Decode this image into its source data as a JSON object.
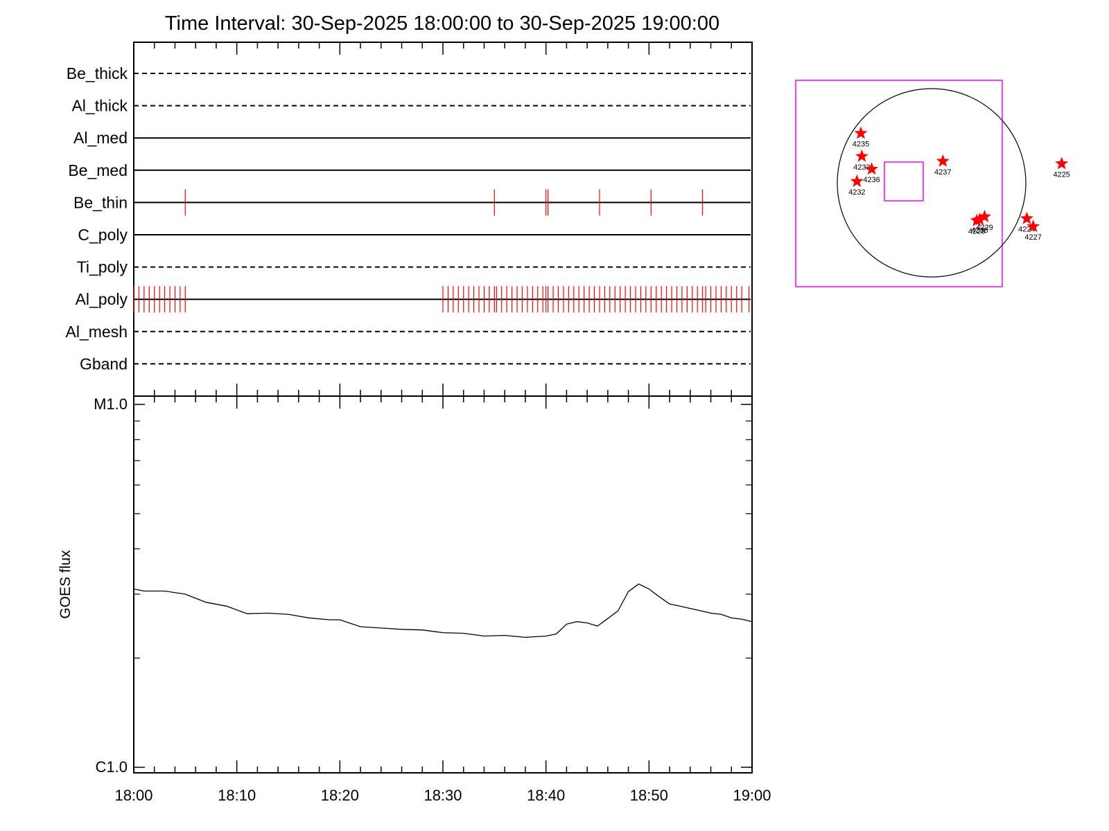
{
  "chart_data": {
    "type": "line",
    "title": "Time Interval: 30-Sep-2025 18:00:00 to 30-Sep-2025 19:00:00",
    "attenuator_panel": {
      "rows": [
        {
          "name": "Be_thick",
          "style": "dashed"
        },
        {
          "name": "Al_thick",
          "style": "dashed"
        },
        {
          "name": "Al_med",
          "style": "solid"
        },
        {
          "name": "Be_med",
          "style": "solid"
        },
        {
          "name": "Be_thin",
          "style": "solid"
        },
        {
          "name": "C_poly",
          "style": "solid"
        },
        {
          "name": "Ti_poly",
          "style": "dashed"
        },
        {
          "name": "Al_poly",
          "style": "solid"
        },
        {
          "name": "Al_mesh",
          "style": "dashed"
        },
        {
          "name": "Gband",
          "style": "dashed"
        }
      ],
      "event_color": "#ff0000",
      "be_thin_events_min": [
        5,
        35,
        40,
        40.2,
        45.2,
        50.2,
        55.2
      ],
      "al_poly_events_min": [
        0,
        0.5,
        1,
        1.5,
        2,
        2.5,
        3,
        3.5,
        4,
        4.5,
        5,
        30,
        30.5,
        31,
        31.5,
        32,
        32.5,
        33,
        33.5,
        34,
        34.5,
        35,
        35.2,
        35.7,
        36.2,
        36.7,
        37.2,
        37.7,
        38.2,
        38.7,
        39.2,
        39.7,
        40,
        40.2,
        40.7,
        41.2,
        41.7,
        42.2,
        42.7,
        43.2,
        43.7,
        44.2,
        44.7,
        45.2,
        45.7,
        46.2,
        46.7,
        47.2,
        47.7,
        48.2,
        48.7,
        49.2,
        49.7,
        50.2,
        50.7,
        51.2,
        51.7,
        52.2,
        52.7,
        53.2,
        53.7,
        54.2,
        54.7,
        55.2,
        55.5,
        56,
        56.5,
        57,
        57.5,
        58,
        58.5,
        59,
        59.7
      ]
    },
    "x_axis": {
      "range_min": [
        0,
        60
      ],
      "tick_labels": [
        "18:00",
        "18:10",
        "18:20",
        "18:30",
        "18:40",
        "18:50",
        "19:00"
      ],
      "tick_values_min": [
        0,
        10,
        20,
        30,
        40,
        50,
        60
      ]
    },
    "y_axis": {
      "label": "GOES flux",
      "scale": "log",
      "range_wm2": [
        1e-06,
        1e-05
      ],
      "tick_labels": [
        "C1.0",
        "M1.0"
      ]
    },
    "series": [
      {
        "x_min": [
          0,
          1,
          3,
          5,
          7,
          9,
          11,
          13,
          15,
          17,
          19,
          20,
          22,
          24,
          26,
          28,
          30,
          32,
          34,
          36,
          38,
          40,
          41,
          42,
          43,
          44,
          45,
          46,
          47,
          48,
          49,
          50,
          51,
          52,
          53,
          54,
          55,
          56,
          57,
          58,
          59,
          60
        ],
        "y_wm2": [
          3.1e-06,
          3.06e-06,
          3.06e-06,
          3e-06,
          2.85e-06,
          2.78e-06,
          2.65e-06,
          2.66e-06,
          2.64e-06,
          2.58e-06,
          2.55e-06,
          2.55e-06,
          2.44e-06,
          2.42e-06,
          2.4e-06,
          2.39e-06,
          2.35e-06,
          2.34e-06,
          2.3e-06,
          2.31e-06,
          2.28e-06,
          2.3e-06,
          2.33e-06,
          2.48e-06,
          2.52e-06,
          2.5e-06,
          2.45e-06,
          2.57e-06,
          2.7e-06,
          3.05e-06,
          3.2e-06,
          3.1e-06,
          2.95e-06,
          2.82e-06,
          2.78e-06,
          2.74e-06,
          2.7e-06,
          2.66e-06,
          2.64e-06,
          2.58e-06,
          2.56e-06,
          2.52e-06
        ]
      }
    ],
    "grid": false,
    "legend": "none"
  },
  "solar_map": {
    "disk_color": "#000000",
    "box_color": "#ff00ff",
    "marker_color": "#ff0000",
    "regions": [
      {
        "id": "4235",
        "x_arcsec": -720,
        "y_arcsec": 505
      },
      {
        "id": "4233",
        "x_arcsec": -710,
        "y_arcsec": 270
      },
      {
        "id": "4236",
        "x_arcsec": -610,
        "y_arcsec": 140
      },
      {
        "id": "4232",
        "x_arcsec": -760,
        "y_arcsec": 15
      },
      {
        "id": "4237",
        "x_arcsec": 115,
        "y_arcsec": 220
      },
      {
        "id": "4225",
        "x_arcsec": 1325,
        "y_arcsec": 195
      },
      {
        "id": "4229",
        "x_arcsec": 540,
        "y_arcsec": -345
      },
      {
        "id": "4238",
        "x_arcsec": 490,
        "y_arcsec": -375
      },
      {
        "id": "4228",
        "x_arcsec": 460,
        "y_arcsec": -385
      },
      {
        "id": "4224",
        "x_arcsec": 970,
        "y_arcsec": -365
      },
      {
        "id": "4227",
        "x_arcsec": 1035,
        "y_arcsec": -445
      }
    ]
  }
}
